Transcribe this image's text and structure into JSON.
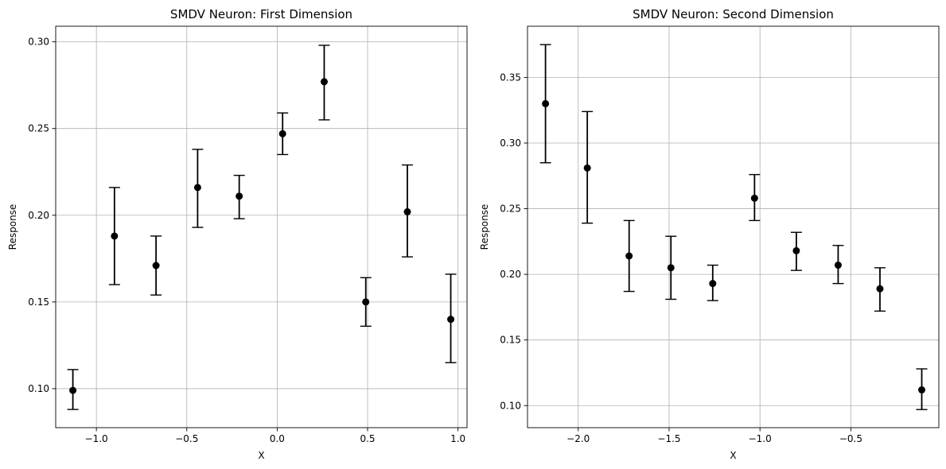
{
  "chart_data": [
    {
      "type": "scatter",
      "title": "SMDV Neuron: First Dimension",
      "xlabel": "X",
      "ylabel": "Response",
      "xlim": [
        -1.225,
        1.05
      ],
      "ylim": [
        0.0775,
        0.309
      ],
      "xticks": [
        -1.0,
        -0.5,
        0.0,
        0.5,
        1.0
      ],
      "xtick_labels": [
        "−1.0",
        "−0.5",
        "0.0",
        "0.5",
        "1.0"
      ],
      "yticks": [
        0.1,
        0.15,
        0.2,
        0.25,
        0.3
      ],
      "ytick_labels": [
        "0.10",
        "0.15",
        "0.20",
        "0.25",
        "0.30"
      ],
      "grid": true,
      "marker_color": "#000000",
      "points": [
        {
          "x": -1.13,
          "y": 0.099,
          "err_low": 0.088,
          "err_high": 0.111
        },
        {
          "x": -0.9,
          "y": 0.188,
          "err_low": 0.16,
          "err_high": 0.216
        },
        {
          "x": -0.67,
          "y": 0.171,
          "err_low": 0.154,
          "err_high": 0.188
        },
        {
          "x": -0.44,
          "y": 0.216,
          "err_low": 0.193,
          "err_high": 0.238
        },
        {
          "x": -0.21,
          "y": 0.211,
          "err_low": 0.198,
          "err_high": 0.223
        },
        {
          "x": 0.03,
          "y": 0.247,
          "err_low": 0.235,
          "err_high": 0.259
        },
        {
          "x": 0.26,
          "y": 0.277,
          "err_low": 0.255,
          "err_high": 0.298
        },
        {
          "x": 0.49,
          "y": 0.15,
          "err_low": 0.136,
          "err_high": 0.164
        },
        {
          "x": 0.72,
          "y": 0.202,
          "err_low": 0.176,
          "err_high": 0.229
        },
        {
          "x": 0.96,
          "y": 0.14,
          "err_low": 0.115,
          "err_high": 0.166
        }
      ]
    },
    {
      "type": "scatter",
      "title": "SMDV Neuron: Second Dimension",
      "xlabel": "X",
      "ylabel": "Response",
      "xlim": [
        -2.279,
        -0.016
      ],
      "ylim": [
        0.0832,
        0.389
      ],
      "xticks": [
        -2.0,
        -1.5,
        -1.0,
        -0.5
      ],
      "xtick_labels": [
        "−2.0",
        "−1.5",
        "−1.0",
        "−0.5"
      ],
      "yticks": [
        0.1,
        0.15,
        0.2,
        0.25,
        0.3,
        0.35
      ],
      "ytick_labels": [
        "0.10",
        "0.15",
        "0.20",
        "0.25",
        "0.30",
        "0.35"
      ],
      "grid": true,
      "marker_color": "#000000",
      "points": [
        {
          "x": -2.18,
          "y": 0.33,
          "err_low": 0.285,
          "err_high": 0.375
        },
        {
          "x": -1.95,
          "y": 0.281,
          "err_low": 0.239,
          "err_high": 0.324
        },
        {
          "x": -1.72,
          "y": 0.214,
          "err_low": 0.187,
          "err_high": 0.241
        },
        {
          "x": -1.49,
          "y": 0.205,
          "err_low": 0.181,
          "err_high": 0.229
        },
        {
          "x": -1.26,
          "y": 0.193,
          "err_low": 0.18,
          "err_high": 0.207
        },
        {
          "x": -1.03,
          "y": 0.258,
          "err_low": 0.241,
          "err_high": 0.276
        },
        {
          "x": -0.8,
          "y": 0.218,
          "err_low": 0.203,
          "err_high": 0.232
        },
        {
          "x": -0.57,
          "y": 0.207,
          "err_low": 0.193,
          "err_high": 0.222
        },
        {
          "x": -0.34,
          "y": 0.189,
          "err_low": 0.172,
          "err_high": 0.205
        },
        {
          "x": -0.11,
          "y": 0.112,
          "err_low": 0.097,
          "err_high": 0.128
        }
      ]
    }
  ]
}
